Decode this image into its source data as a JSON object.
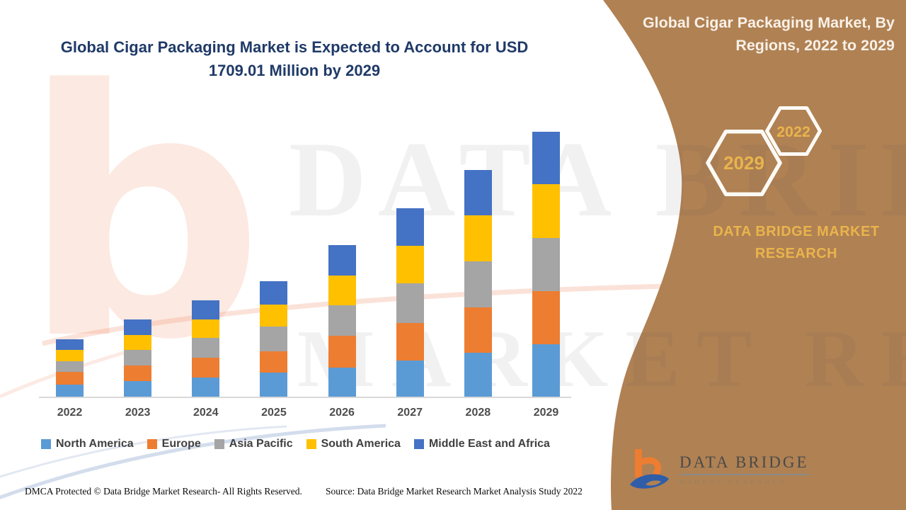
{
  "left": {
    "title_line1": "Global Cigar Packaging Market is Expected to Account for USD",
    "title_line2": "1709.01 Million by 2029"
  },
  "panel": {
    "title_line1": "Global Cigar Packaging Market, By",
    "title_line2": "Regions, 2022 to 2029",
    "hex_large_year": "2029",
    "hex_small_year": "2022",
    "brand": "DATA BRIDGE MARKET RESEARCH",
    "colors": {
      "background": "#b08153",
      "accent_gold": "#e9b44c",
      "hex_stroke": "#fdfaf5",
      "title_text": "#f9f1e8"
    }
  },
  "logo": {
    "text": "DATA BRIDGE",
    "subtext": "MARKET RESEARCH",
    "b_color": "#ed7d31",
    "swoosh_color": "#2f5da8"
  },
  "watermark": {
    "letter": "b",
    "line1": "DATA BRIDGE",
    "line2": "MARKET RESEARCH"
  },
  "footer": {
    "left": "DMCA Protected © Data Bridge Market Research- All Rights Reserved.",
    "right": "Source: Data Bridge Market Research Market Analysis Study 2022"
  },
  "chart_data": {
    "type": "bar",
    "stacked": true,
    "title": "Global Cigar Packaging Market is Expected to Account for USD 1709.01 Million by 2029",
    "units": "USD Million",
    "categories": [
      "2022",
      "2023",
      "2024",
      "2025",
      "2026",
      "2027",
      "2028",
      "2029"
    ],
    "series": [
      {
        "name": "North America",
        "color": "#5b9bd5",
        "values": [
          77,
          100,
          124,
          155,
          187,
          233,
          283,
          338
        ]
      },
      {
        "name": "Europe",
        "color": "#ed7d31",
        "values": [
          82,
          101,
          128,
          137,
          206,
          242,
          292,
          343
        ]
      },
      {
        "name": "Asia Pacific",
        "color": "#a5a5a5",
        "values": [
          69,
          100,
          128,
          160,
          196,
          256,
          297,
          343
        ]
      },
      {
        "name": "South America",
        "color": "#ffc000",
        "values": [
          73,
          96,
          119,
          142,
          192,
          242,
          297,
          347
        ]
      },
      {
        "name": "Middle East and Africa",
        "color": "#4472c4",
        "values": [
          69,
          100,
          123,
          151,
          196,
          242,
          292,
          338.01
        ]
      }
    ],
    "totals": [
      370,
      497,
      622,
      745,
      977,
      1215,
      1461,
      1709.01
    ],
    "ylim": [
      0,
      1709.01
    ],
    "grid": false,
    "y_axis_visible": false,
    "legend_position": "bottom",
    "legend_order": [
      "North America",
      "Europe",
      "Asia Pacific",
      "South America",
      "Middle East and Africa"
    ],
    "note": "values estimated from bar heights; 2029 total labeled as 1709.01"
  }
}
